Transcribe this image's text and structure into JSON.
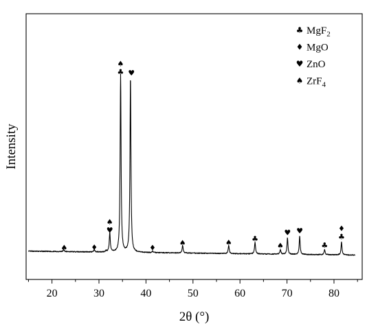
{
  "chart_data": {
    "type": "line",
    "title": "",
    "xlabel": "2θ (°)",
    "ylabel": "Intensity",
    "xlim": [
      14.5,
      86
    ],
    "ylim": [
      0,
      100
    ],
    "x_ticks": [
      20,
      30,
      40,
      50,
      60,
      70,
      80
    ],
    "x_tick_labels": [
      "20",
      "30",
      "40",
      "50",
      "60",
      "70",
      "80"
    ],
    "y_ticks_shown": false,
    "grid": false,
    "legend_position": "top-right",
    "legend": [
      {
        "id": "mgf2",
        "symbol": "♣",
        "name": "MgF",
        "subscript": "2"
      },
      {
        "id": "mgo",
        "symbol": "♦",
        "name": "MgO",
        "subscript": ""
      },
      {
        "id": "zno",
        "symbol": "♥",
        "name": "ZnO",
        "subscript": ""
      },
      {
        "id": "zrf4",
        "symbol": "♠",
        "name": "ZrF",
        "subscript": "4"
      }
    ],
    "baseline": {
      "x_start": 15,
      "x_end": 84.5,
      "y_start": 2.4,
      "y_end": 0.5,
      "noise": 0.22
    },
    "peaks": [
      {
        "x": 22.5,
        "height": 1.0,
        "width": 0.12
      },
      {
        "x": 29.0,
        "height": 1.1,
        "width": 0.12
      },
      {
        "x": 31.5,
        "height": 0.6,
        "width": 0.12
      },
      {
        "x": 32.3,
        "height": 9.4,
        "width": 0.13
      },
      {
        "x": 34.6,
        "height": 86.5,
        "width": 0.12
      },
      {
        "x": 36.7,
        "height": 85.5,
        "width": 0.12
      },
      {
        "x": 41.4,
        "height": 0.8,
        "width": 0.12
      },
      {
        "x": 47.8,
        "height": 3.7,
        "width": 0.13
      },
      {
        "x": 57.6,
        "height": 3.9,
        "width": 0.13
      },
      {
        "x": 63.2,
        "height": 5.6,
        "width": 0.13
      },
      {
        "x": 68.6,
        "height": 2.2,
        "width": 0.13
      },
      {
        "x": 70.1,
        "height": 8.1,
        "width": 0.12
      },
      {
        "x": 72.7,
        "height": 9.0,
        "width": 0.12
      },
      {
        "x": 78.0,
        "height": 2.4,
        "width": 0.13
      },
      {
        "x": 81.6,
        "height": 6.4,
        "width": 0.12
      }
    ],
    "annotations": [
      {
        "x": 22.6,
        "y": 2.8,
        "phases": [
          "zrf4"
        ]
      },
      {
        "x": 29.0,
        "y": 3.0,
        "phases": [
          "mgo"
        ]
      },
      {
        "x": 32.3,
        "y": 11.4,
        "phases": [
          "zrf4",
          "zno"
        ]
      },
      {
        "x": 34.6,
        "y": 88.5,
        "phases": [
          "zrf4",
          "mgf2"
        ]
      },
      {
        "x": 36.9,
        "y": 88.0,
        "phases": [
          "zno"
        ]
      },
      {
        "x": 41.4,
        "y": 2.9,
        "phases": [
          "mgo"
        ]
      },
      {
        "x": 47.8,
        "y": 5.2,
        "phases": [
          "zrf4"
        ]
      },
      {
        "x": 57.6,
        "y": 5.4,
        "phases": [
          "zrf4"
        ]
      },
      {
        "x": 63.2,
        "y": 7.2,
        "phases": [
          "mgf2"
        ]
      },
      {
        "x": 68.6,
        "y": 3.8,
        "phases": [
          "zrf4"
        ]
      },
      {
        "x": 70.1,
        "y": 10.2,
        "phases": [
          "zno"
        ]
      },
      {
        "x": 72.7,
        "y": 11.0,
        "phases": [
          "zno"
        ]
      },
      {
        "x": 78.0,
        "y": 4.0,
        "phases": [
          "mgf2"
        ]
      },
      {
        "x": 81.6,
        "y": 8.2,
        "phases": [
          "mgo",
          "mgf2"
        ]
      }
    ]
  }
}
